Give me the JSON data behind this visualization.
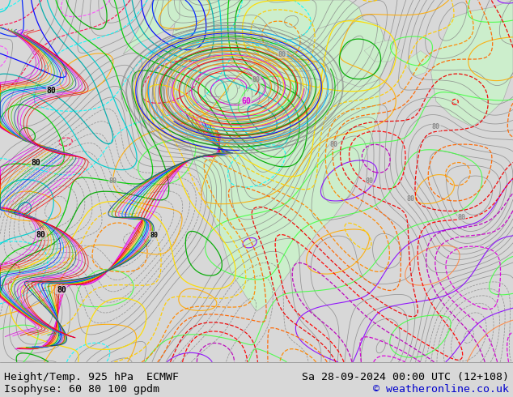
{
  "title_left": "Height/Temp. 925 hPa  ECMWF",
  "title_right": "Sa 28-09-2024 00:00 UTC (12+108)",
  "subtitle_left": "Isophyse: 60 80 100 gpdm",
  "subtitle_right": "© weatheronline.co.uk",
  "ocean_color": "#d8d8d8",
  "land_color": "#cceecc",
  "bottom_bar_color": "#ffffff",
  "text_color": "#000000",
  "copyright_color": "#0000cc",
  "title_fontsize": 9.5,
  "subtitle_fontsize": 9.5,
  "fig_width": 6.34,
  "fig_height": 4.9,
  "dpi": 100
}
